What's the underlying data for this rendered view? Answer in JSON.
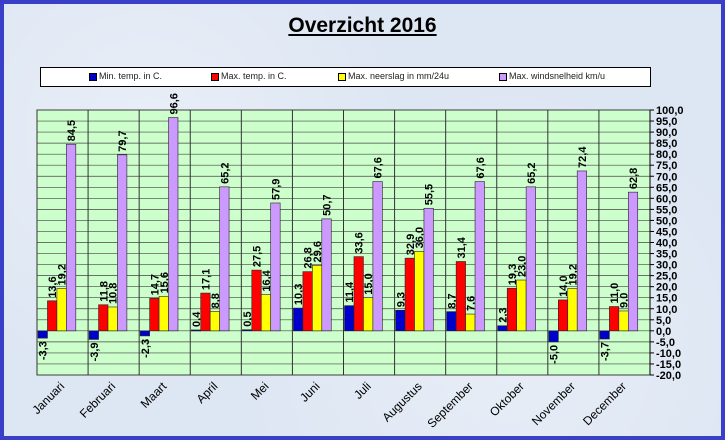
{
  "chart_data": {
    "type": "bar",
    "title": "Overzicht 2016",
    "xlabel": "",
    "ylabel": "",
    "ylim": [
      -20,
      100
    ],
    "ytick_step": 5,
    "grid": true,
    "legend_position": "top",
    "categories": [
      "Januari",
      "Februari",
      "Maart",
      "April",
      "Mei",
      "Juni",
      "Juli",
      "Augustus",
      "September",
      "Oktober",
      "November",
      "December"
    ],
    "series": [
      {
        "name": "Min. temp. in C.",
        "color": "#0000cc",
        "values": [
          -3.3,
          -3.9,
          -2.3,
          0.4,
          0.5,
          10.3,
          11.4,
          9.3,
          8.7,
          2.3,
          -5.0,
          -3.7
        ]
      },
      {
        "name": "Max. temp. in C.",
        "color": "#ff0000",
        "values": [
          13.6,
          11.8,
          14.7,
          17.1,
          27.5,
          26.8,
          33.6,
          32.9,
          31.4,
          19.3,
          14.0,
          11.0
        ]
      },
      {
        "name": "Max. neerslag in mm/24u",
        "color": "#ffff00",
        "values": [
          19.2,
          10.8,
          15.6,
          8.8,
          16.4,
          29.6,
          15.0,
          36.0,
          7.6,
          23.0,
          19.2,
          9.0
        ]
      },
      {
        "name": "Max. windsnelheid km/u",
        "color": "#cc99ff",
        "values": [
          84.5,
          79.7,
          96.6,
          65.2,
          57.9,
          50.7,
          67.6,
          55.5,
          67.6,
          65.2,
          72.4,
          62.8
        ]
      }
    ]
  },
  "colors": {
    "plot_bg": "#ccffcc",
    "frame": "#3a3fc8"
  }
}
